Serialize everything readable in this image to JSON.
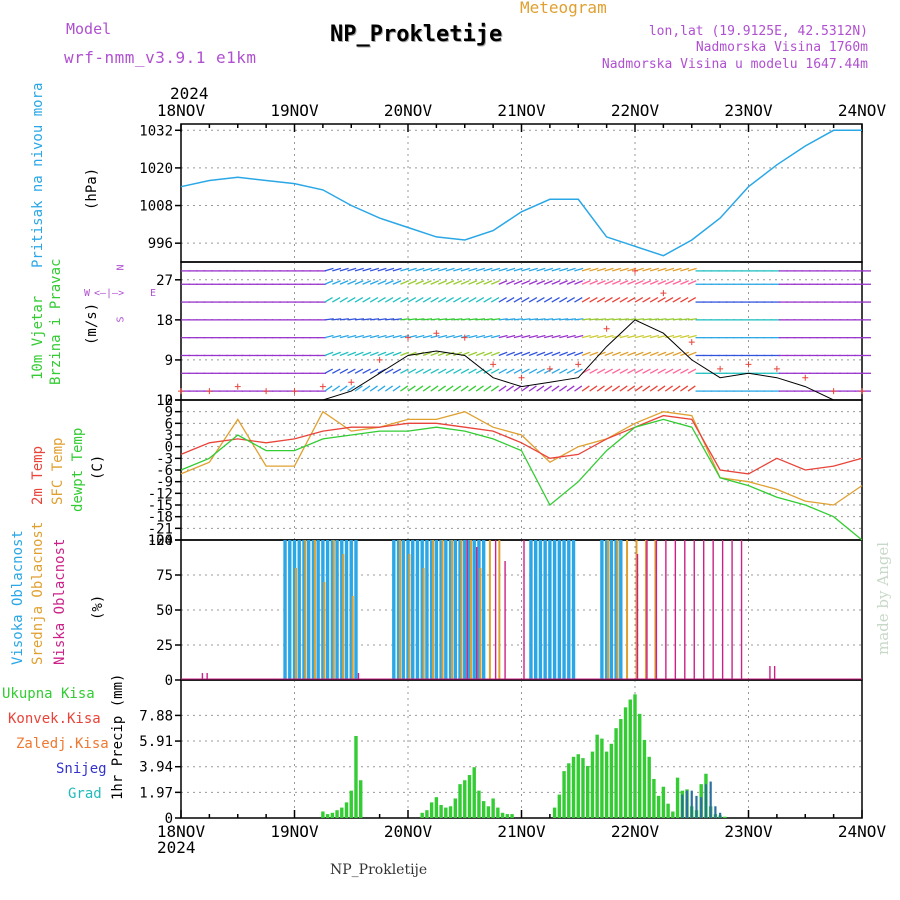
{
  "header": {
    "model_label": "Model",
    "model_name": "wrf-nmm_v3.9.1 e1km",
    "title": "NP_Prokletije",
    "subtitle": "Meteogram",
    "lonlat": "lon,lat (19.9125E, 42.5312N)",
    "altitude": "Nadmorska Visina 1760m",
    "model_altitude": "Nadmorska Visina u modelu 1647.44m"
  },
  "footer": {
    "station": "NP_Prokletije",
    "credit": "made by Angel"
  },
  "colors": {
    "pressure": "#2aa7e6",
    "wind_black": "#000000",
    "temp2m": "#e8443a",
    "sfc": "#e0a030",
    "dew": "#33cc33",
    "high": "#2aa7e6",
    "mid": "#e0a030",
    "low": "#cc2288",
    "precip": "#33cc33",
    "conv": "#e8443a",
    "frozen": "#f07830",
    "snow": "#3333cc",
    "hail": "#22bbbb",
    "violet": "#b050d0"
  },
  "time_axis": {
    "year": "2024",
    "labels": [
      "18NOV",
      "19NOV",
      "20NOV",
      "21NOV",
      "22NOV",
      "23NOV",
      "24NOV"
    ],
    "start_hour": 0,
    "end_hour": 144
  },
  "panel_labels": {
    "pressure": "Pritisak na nivou mora",
    "pressure_unit": "(hPa)",
    "wind1": "10m Vjetar",
    "wind2": "Brzina i Pravac",
    "wind_unit": "(m/s)",
    "compass_n": "N",
    "compass_e": "E",
    "compass_s": "S",
    "compass_w": "W",
    "temp1": "2m Temp",
    "temp2": "SFC Temp",
    "temp3": "dewpt Temp",
    "temp_unit": "(C)",
    "cloud1": "Visoka Oblacnost",
    "cloud2": "Srednja Oblacnost",
    "cloud3": "Niska Oblacnost",
    "cloud_unit": "(%)",
    "precip_unit": "1hr Precip (mm)",
    "legend_total": "Ukupna Kisa",
    "legend_conv": "Konvek.Kisa",
    "legend_frozen": "Zaledj.Kisa",
    "legend_snow": "Snijeg",
    "legend_hail": "Grad"
  },
  "chart_data": [
    {
      "id": "pressure",
      "type": "line",
      "ylabel": "(hPa)",
      "ylim": [
        990,
        1034
      ],
      "yticks": [
        996,
        1008,
        1020,
        1032
      ],
      "series": [
        {
          "name": "Pritisak na nivou mora",
          "x": [
            0,
            6,
            12,
            18,
            24,
            30,
            36,
            42,
            48,
            54,
            60,
            66,
            72,
            78,
            84,
            90,
            96,
            102,
            108,
            114,
            120,
            126,
            132,
            138,
            144
          ],
          "values": [
            1014,
            1016,
            1017,
            1016,
            1015,
            1013,
            1008,
            1004,
            1001,
            998,
            997,
            1000,
            1006,
            1010,
            1010,
            998,
            995,
            992,
            997,
            1004,
            1014,
            1021,
            1027,
            1032,
            1032
          ]
        }
      ]
    },
    {
      "id": "wind",
      "type": "line",
      "ylabel": "(m/s)",
      "ylim": [
        0,
        31
      ],
      "yticks": [
        0,
        9,
        18,
        27
      ],
      "series": [
        {
          "name": "10m Vjetar",
          "x": [
            0,
            6,
            12,
            18,
            24,
            30,
            36,
            42,
            48,
            54,
            60,
            66,
            72,
            78,
            84,
            90,
            96,
            102,
            108,
            114,
            120,
            126,
            132,
            138,
            144
          ],
          "values": [
            0,
            0,
            0,
            0,
            0,
            0,
            2,
            6,
            10,
            11,
            10,
            5,
            3,
            4,
            5,
            12,
            18,
            15,
            9,
            5,
            6,
            5,
            3,
            0,
            0
          ]
        },
        {
          "name": "gust",
          "x": [
            0,
            6,
            12,
            18,
            24,
            30,
            36,
            42,
            48,
            54,
            60,
            66,
            72,
            78,
            84,
            90,
            96,
            102,
            108,
            114,
            120,
            126,
            132,
            138,
            144
          ],
          "values": [
            2,
            2,
            3,
            2,
            2,
            3,
            4,
            9,
            14,
            15,
            14,
            8,
            5,
            7,
            8,
            16,
            29,
            24,
            13,
            7,
            8,
            7,
            5,
            2,
            2
          ]
        }
      ]
    },
    {
      "id": "temperature",
      "type": "line",
      "ylabel": "(C)",
      "ylim": [
        -24,
        12
      ],
      "yticks": [
        12,
        9,
        6,
        3,
        0,
        -3,
        -6,
        -9,
        -12,
        -15,
        -18,
        -21,
        -24
      ],
      "series": [
        {
          "name": "2m Temp",
          "x": [
            0,
            6,
            12,
            18,
            24,
            30,
            36,
            42,
            48,
            54,
            60,
            66,
            72,
            78,
            84,
            90,
            96,
            102,
            108,
            114,
            120,
            126,
            132,
            138,
            144
          ],
          "values": [
            -2,
            1,
            2,
            1,
            2,
            4,
            5,
            5,
            6,
            6,
            5,
            4,
            1,
            -3,
            -2,
            2,
            5,
            8,
            7,
            -6,
            -7,
            -3,
            -6,
            -5,
            -3
          ]
        },
        {
          "name": "SFC Temp",
          "x": [
            0,
            6,
            12,
            18,
            24,
            30,
            36,
            42,
            48,
            54,
            60,
            66,
            72,
            78,
            84,
            90,
            96,
            102,
            108,
            114,
            120,
            126,
            132,
            138,
            144
          ],
          "values": [
            -7,
            -4,
            7,
            -5,
            -5,
            9,
            4,
            5,
            7,
            7,
            9,
            5,
            3,
            -4,
            0,
            2,
            6,
            9,
            8,
            -8,
            -9,
            -11,
            -14,
            -15,
            -10
          ]
        },
        {
          "name": "dewpt Temp",
          "x": [
            0,
            6,
            12,
            18,
            24,
            30,
            36,
            42,
            48,
            54,
            60,
            66,
            72,
            78,
            84,
            90,
            96,
            102,
            108,
            114,
            120,
            126,
            132,
            138,
            144
          ],
          "values": [
            -6,
            -3,
            3,
            -1,
            -1,
            2,
            3,
            4,
            4,
            5,
            4,
            2,
            -1,
            -15,
            -9,
            -1,
            5,
            7,
            5,
            -8,
            -10,
            -13,
            -15,
            -18,
            -24
          ]
        }
      ]
    },
    {
      "id": "clouds",
      "type": "bar",
      "ylabel": "(%)",
      "ylim": [
        0,
        100
      ],
      "yticks": [
        0,
        25,
        50,
        75,
        100
      ],
      "series": [
        {
          "name": "Visoka Oblacnost",
          "x": [
            22,
            23,
            24,
            25,
            26,
            27,
            28,
            29,
            30,
            31,
            32,
            33,
            34,
            35,
            36,
            37,
            45,
            46,
            47,
            48,
            49,
            50,
            51,
            52,
            53,
            54,
            55,
            56,
            57,
            58,
            59,
            60,
            61,
            62,
            63,
            64,
            74,
            75,
            76,
            77,
            78,
            79,
            80,
            81,
            82,
            83,
            89,
            90,
            91,
            92,
            93
          ],
          "values": [
            100,
            100,
            100,
            100,
            100,
            100,
            100,
            100,
            100,
            100,
            100,
            100,
            100,
            100,
            100,
            100,
            100,
            100,
            100,
            100,
            100,
            100,
            100,
            100,
            100,
            100,
            100,
            100,
            100,
            100,
            100,
            100,
            100,
            100,
            100,
            100,
            100,
            100,
            100,
            100,
            100,
            100,
            100,
            100,
            100,
            100,
            100,
            100,
            100,
            100,
            100
          ]
        },
        {
          "name": "Srednja Oblacnost",
          "x": [
            24,
            26,
            28,
            30,
            32,
            34,
            36,
            46,
            48,
            51,
            53,
            55,
            57,
            59,
            61,
            63,
            65,
            67,
            90,
            92,
            94,
            96,
            98,
            100
          ],
          "values": [
            80,
            100,
            100,
            70,
            100,
            90,
            60,
            100,
            90,
            80,
            100,
            100,
            100,
            100,
            100,
            80,
            100,
            100,
            100,
            100,
            100,
            100,
            100,
            100
          ]
        },
        {
          "name": "Niska Oblacnost",
          "x": [
            4,
            5,
            37,
            60,
            62,
            66,
            68,
            72,
            96,
            98,
            100,
            102,
            104,
            106,
            108,
            110,
            112,
            114,
            116,
            118,
            124,
            125
          ],
          "values": [
            5,
            5,
            5,
            100,
            95,
            100,
            85,
            100,
            90,
            100,
            100,
            100,
            100,
            100,
            100,
            100,
            100,
            100,
            100,
            100,
            10,
            10
          ]
        }
      ]
    },
    {
      "id": "precip",
      "type": "bar",
      "ylabel": "1hr Precip (mm)",
      "ylim": [
        0,
        10.6
      ],
      "yticks": [
        0,
        1.97,
        3.94,
        5.91,
        7.88
      ],
      "series": [
        {
          "name": "Ukupna Kisa",
          "x": [
            30,
            31,
            32,
            33,
            34,
            35,
            36,
            37,
            38,
            51,
            52,
            53,
            54,
            55,
            56,
            57,
            58,
            59,
            60,
            61,
            62,
            63,
            64,
            65,
            66,
            67,
            68,
            69,
            70,
            79,
            80,
            81,
            82,
            83,
            84,
            85,
            86,
            87,
            88,
            89,
            90,
            91,
            92,
            93,
            94,
            95,
            96,
            97,
            98,
            99,
            100,
            101,
            102,
            103,
            104,
            105,
            106,
            107,
            108,
            109,
            110,
            111,
            112,
            113,
            114,
            115
          ],
          "values": [
            0.5,
            0.3,
            0.4,
            0.6,
            0.8,
            1.2,
            2.1,
            6.3,
            2.9,
            0.4,
            0.6,
            1.2,
            1.6,
            1.0,
            0.8,
            0.9,
            1.5,
            2.6,
            2.9,
            3.3,
            3.9,
            2.1,
            1.3,
            0.9,
            1.5,
            0.8,
            0.4,
            0.3,
            0.3,
            0.8,
            1.8,
            3.6,
            4.2,
            4.7,
            4.9,
            4.6,
            4.0,
            5.1,
            6.4,
            6.1,
            5.1,
            5.7,
            6.9,
            7.6,
            8.5,
            9.1,
            9.5,
            8.0,
            6.0,
            4.7,
            3.0,
            1.7,
            2.4,
            1.1,
            0.5,
            3.1,
            2.1,
            2.2,
            0.9,
            0.6,
            2.6,
            3.4,
            0.9,
            0.3,
            0.2,
            0.1
          ]
        },
        {
          "name": "Snijeg",
          "x": [
            106,
            107,
            108,
            109,
            110,
            111,
            112,
            113,
            114
          ],
          "values": [
            1.8,
            2.1,
            2.1,
            1.7,
            1.6,
            2.6,
            2.8,
            0.9,
            0.4
          ]
        }
      ]
    }
  ]
}
